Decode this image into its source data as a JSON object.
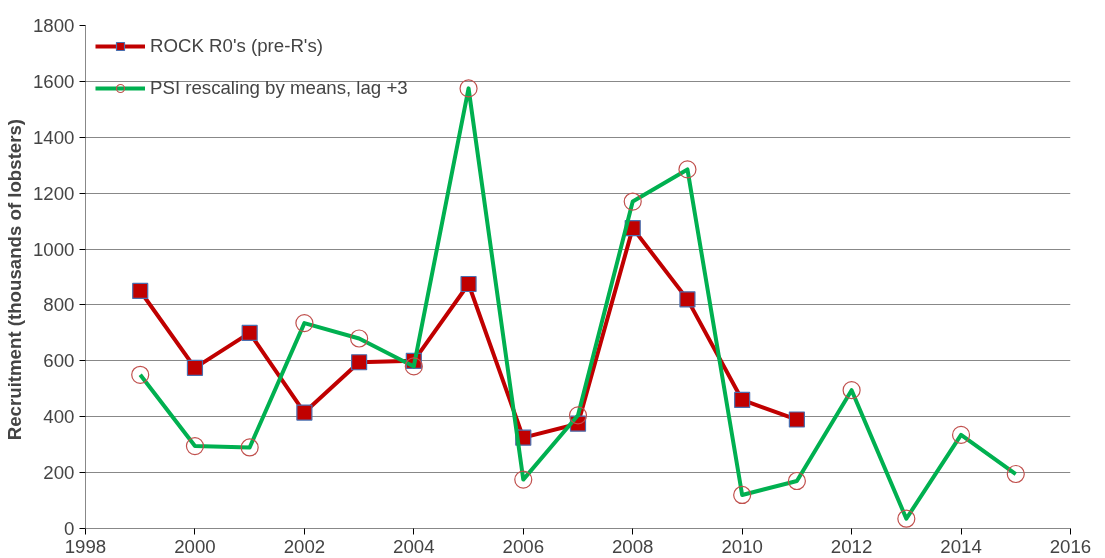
{
  "chart_data": {
    "type": "line",
    "ylabel": "Recruitment  (thousands of lobsters)",
    "xlim": [
      1998,
      2016
    ],
    "xticks": [
      1998,
      2000,
      2002,
      2004,
      2006,
      2008,
      2010,
      2012,
      2014,
      2016
    ],
    "ylim": [
      0,
      1800
    ],
    "yticks": [
      0,
      200,
      400,
      600,
      800,
      1000,
      1200,
      1400,
      1600,
      1800
    ],
    "grid": "y",
    "legend": "top left",
    "series": [
      {
        "name": "ROCK R0's (pre-R's)",
        "color": "#c00000",
        "marker": "square",
        "x": [
          1999,
          2000,
          2001,
          2002,
          2003,
          2004,
          2005,
          2006,
          2007,
          2008,
          2009,
          2010,
          2011
        ],
        "values": [
          850,
          575,
          700,
          415,
          595,
          600,
          875,
          325,
          375,
          1075,
          820,
          460,
          390
        ]
      },
      {
        "name": "PSI rescaling by means, lag +3",
        "color": "#00b050",
        "marker": "circle",
        "x": [
          1999,
          2000,
          2001,
          2002,
          2003,
          2004,
          2005,
          2006,
          2007,
          2008,
          2009,
          2010,
          2011,
          2012,
          2013,
          2014,
          2015
        ],
        "values": [
          550,
          295,
          290,
          735,
          680,
          580,
          1575,
          175,
          405,
          1170,
          1285,
          120,
          170,
          495,
          35,
          335,
          195
        ]
      }
    ]
  }
}
